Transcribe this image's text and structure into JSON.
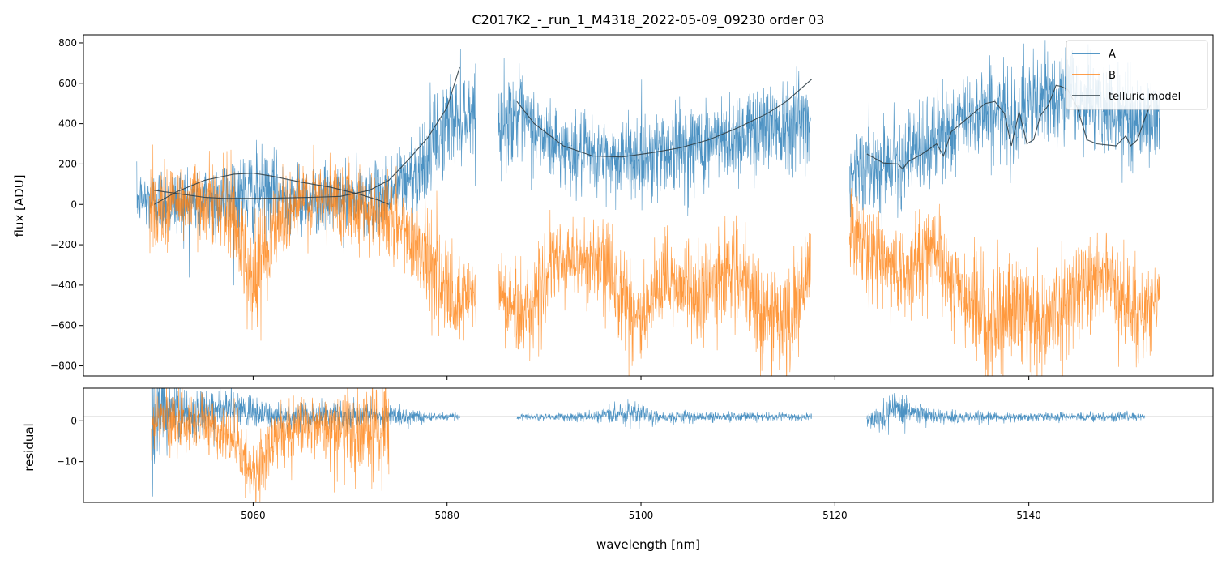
{
  "chart_data": [
    {
      "type": "line",
      "panel": "top",
      "title": "C2017K2_-_run_1_M4318_2022-05-09_09230  order 03",
      "xlabel": "",
      "ylabel": "flux [ADU]",
      "xlim": [
        5042.5,
        5159.0
      ],
      "ylim": [
        -850,
        840
      ],
      "yticks": [
        -800,
        -600,
        -400,
        -200,
        0,
        200,
        400,
        600,
        800
      ],
      "ytick_labels": [
        "−800",
        "−600",
        "−400",
        "−200",
        "0",
        "200",
        "400",
        "600",
        "800"
      ],
      "xticks": [
        5060,
        5080,
        5100,
        5120,
        5140
      ],
      "legend": {
        "position": "top-right",
        "entries": [
          {
            "label": "A",
            "color": "#1f77b4"
          },
          {
            "label": "B",
            "color": "#ff7f0e"
          },
          {
            "label": "telluric model",
            "color": "#2f3e46"
          }
        ]
      },
      "series": [
        {
          "name": "A",
          "color": "#1f77b4",
          "segments": [
            {
              "x": [
                5048.0,
                5050,
                5055,
                5060,
                5065,
                5070,
                5073,
                5076,
                5078,
                5080,
                5083.0
              ],
              "base": [
                30,
                20,
                15,
                60,
                30,
                20,
                40,
                120,
                250,
                400,
                480
              ],
              "noise": [
                120,
                150,
                180,
                200,
                150,
                150,
                150,
                180,
                200,
                220,
                180
              ]
            },
            {
              "x": [
                5085.3,
                5087,
                5090,
                5093,
                5096,
                5100,
                5104,
                5108,
                5112,
                5115,
                5117.5
              ],
              "base": [
                380,
                450,
                330,
                250,
                230,
                240,
                280,
                310,
                380,
                420,
                420
              ],
              "noise": [
                200,
                200,
                180,
                170,
                170,
                200,
                200,
                200,
                200,
                220,
                220
              ]
            },
            {
              "x": [
                5121.5,
                5123,
                5126,
                5129,
                5132,
                5135,
                5138,
                5141,
                5144,
                5147,
                5150,
                5153.5
              ],
              "base": [
                130,
                180,
                220,
                260,
                380,
                480,
                430,
                500,
                560,
                480,
                430,
                400
              ],
              "noise": [
                180,
                180,
                200,
                200,
                200,
                200,
                200,
                220,
                220,
                200,
                200,
                200
              ]
            }
          ]
        },
        {
          "name": "B",
          "color": "#ff7f0e",
          "segments": [
            {
              "x": [
                5049.3,
                5052,
                5055,
                5058,
                5060,
                5062,
                5065,
                5070,
                5074,
                5078,
                5081,
                5083.0
              ],
              "base": [
                -20,
                10,
                30,
                -50,
                -400,
                -100,
                20,
                20,
                -60,
                -250,
                -550,
                -400
              ],
              "noise": [
                200,
                180,
                180,
                200,
                280,
                200,
                180,
                180,
                200,
                200,
                220,
                200
              ]
            },
            {
              "x": [
                5085.3,
                5088,
                5091,
                5094,
                5097,
                5100,
                5103,
                5106,
                5109,
                5112,
                5115,
                5117.5
              ],
              "base": [
                -450,
                -550,
                -300,
                -260,
                -350,
                -600,
                -350,
                -480,
                -300,
                -500,
                -600,
                -350
              ],
              "noise": [
                200,
                200,
                180,
                180,
                220,
                250,
                200,
                220,
                200,
                220,
                250,
                200
              ]
            },
            {
              "x": [
                5121.5,
                5124,
                5127,
                5130,
                5133,
                5136,
                5139,
                5142,
                5145,
                5148,
                5151,
                5153.5
              ],
              "base": [
                -120,
                -250,
                -350,
                -200,
                -450,
                -600,
                -500,
                -600,
                -400,
                -350,
                -550,
                -450
              ],
              "noise": [
                200,
                200,
                200,
                180,
                220,
                250,
                220,
                250,
                200,
                200,
                220,
                200
              ]
            }
          ]
        },
        {
          "name": "telluric model",
          "color": "#2f3e46",
          "segments": [
            {
              "x": [
                5049.8,
                5052,
                5055,
                5057,
                5059,
                5061,
                5063,
                5066,
                5069,
                5072,
                5074,
                5076,
                5078,
                5080,
                5081.3
              ],
              "y": [
                70,
                55,
                35,
                30,
                30,
                30,
                32,
                35,
                40,
                70,
                120,
                220,
                330,
                480,
                680
              ]
            },
            {
              "x": [
                5049.8,
                5052,
                5055,
                5058,
                5060,
                5062,
                5065,
                5068,
                5071,
                5073,
                5074.0
              ],
              "y": [
                0,
                60,
                120,
                150,
                155,
                140,
                110,
                85,
                50,
                20,
                0
              ]
            },
            {
              "x": [
                5087.2,
                5089,
                5092,
                5095,
                5098,
                5101,
                5104,
                5107,
                5110,
                5113,
                5115,
                5117.6
              ],
              "y": [
                510,
                400,
                290,
                240,
                235,
                255,
                280,
                320,
                380,
                450,
                510,
                620
              ]
            },
            {
              "x": [
                5123.3,
                5125,
                5126.5,
                5127.0,
                5127.5,
                5129,
                5130.5,
                5131.2,
                5132,
                5133,
                5134.5,
                5135.5,
                5136.5,
                5137.5,
                5138.2,
                5139.0,
                5139.8,
                5140.5,
                5141.2,
                5142.0,
                5142.8,
                5143.3,
                5144.0,
                5145.0,
                5146.0,
                5147.0,
                5148.0,
                5149.0,
                5150.0,
                5150.5,
                5151.2,
                5152.0,
                5152.5
              ],
              "y": [
                250,
                205,
                200,
                175,
                210,
                250,
                300,
                240,
                360,
                400,
                460,
                500,
                510,
                450,
                290,
                460,
                300,
                320,
                440,
                490,
                590,
                585,
                570,
                480,
                320,
                300,
                295,
                290,
                340,
                290,
                320,
                430,
                490
              ]
            }
          ]
        }
      ]
    },
    {
      "type": "line",
      "panel": "bottom",
      "title": "",
      "xlabel": "wavelength [nm]",
      "ylabel": "residual",
      "xlim": [
        5042.5,
        5159.0
      ],
      "ylim": [
        -20,
        8
      ],
      "hline": 1,
      "yticks": [
        -10,
        0
      ],
      "ytick_labels": [
        "−10",
        "0"
      ],
      "xticks": [
        5060,
        5080,
        5100,
        5120,
        5140
      ],
      "xtick_labels": [
        "5060",
        "5080",
        "5100",
        "5120",
        "5140"
      ],
      "series": [
        {
          "name": "A",
          "color": "#1f77b4",
          "segments": [
            {
              "x": [
                5049.5,
                5051,
                5054,
                5058,
                5062,
                5066,
                5070,
                5074,
                5077,
                5079,
                5081.3
              ],
              "base": [
                1,
                2,
                2,
                3,
                1,
                1,
                1,
                1,
                1,
                1,
                1
              ],
              "noise": [
                14,
                8,
                5,
                4,
                3,
                3,
                3,
                2.5,
                1.5,
                1,
                0.8
              ]
            },
            {
              "x": [
                5087.2,
                5090,
                5095,
                5098,
                5100,
                5102,
                5106,
                5110,
                5114,
                5117.6
              ],
              "base": [
                1,
                1,
                1,
                2,
                2,
                1,
                1,
                1,
                1,
                1
              ],
              "noise": [
                0.8,
                0.8,
                1,
                2.5,
                2.5,
                1.5,
                1,
                1,
                1,
                0.8
              ]
            },
            {
              "x": [
                5123.3,
                5125,
                5126.5,
                5128,
                5131,
                5135,
                5140,
                5145,
                5150,
                5152.0
              ],
              "base": [
                0,
                1,
                3,
                2,
                1,
                1,
                1,
                1,
                1,
                1
              ],
              "noise": [
                2,
                3,
                4,
                2.5,
                1.5,
                1.2,
                1,
                1,
                1,
                0.8
              ]
            }
          ]
        },
        {
          "name": "B",
          "color": "#ff7f0e",
          "segments": [
            {
              "x": [
                5049.5,
                5052,
                5055,
                5058,
                5059.5,
                5060.5,
                5062,
                5065,
                5068,
                5071,
                5074.0
              ],
              "base": [
                0,
                0,
                -1,
                -4,
                -12,
                -13,
                -5,
                -1,
                -2,
                -2,
                -2
              ],
              "noise": [
                5,
                6,
                6,
                6,
                8,
                8,
                7,
                7,
                8,
                10,
                12
              ]
            }
          ]
        }
      ]
    }
  ]
}
